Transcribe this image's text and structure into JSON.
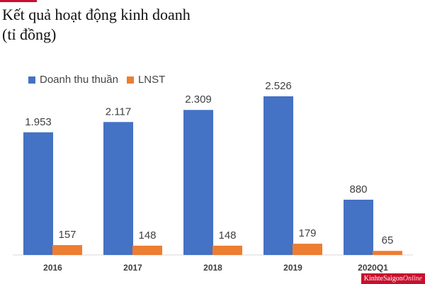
{
  "title": {
    "line1": "Kết quả hoạt động kinh doanh",
    "line2": "(tỉ đồng)"
  },
  "brand": {
    "part1": "KinhteSaigon",
    "part2": "Online"
  },
  "chart_data": {
    "type": "bar",
    "categories": [
      "2016",
      "2017",
      "2018",
      "2019",
      "2020Q1"
    ],
    "series": [
      {
        "name": "Doanh thu thuần",
        "color": "#4472c4",
        "values": [
          1953,
          2117,
          2309,
          2526,
          880
        ],
        "labels": [
          "1.953",
          "2.117",
          "2.309",
          "2.526",
          "880"
        ]
      },
      {
        "name": "LNST",
        "color": "#ed7d31",
        "values": [
          157,
          148,
          148,
          179,
          65
        ],
        "labels": [
          "157",
          "148",
          "148",
          "179",
          "65"
        ]
      }
    ],
    "ylim": [
      0,
      2526
    ],
    "grid": false,
    "legend_position": "top-left"
  }
}
